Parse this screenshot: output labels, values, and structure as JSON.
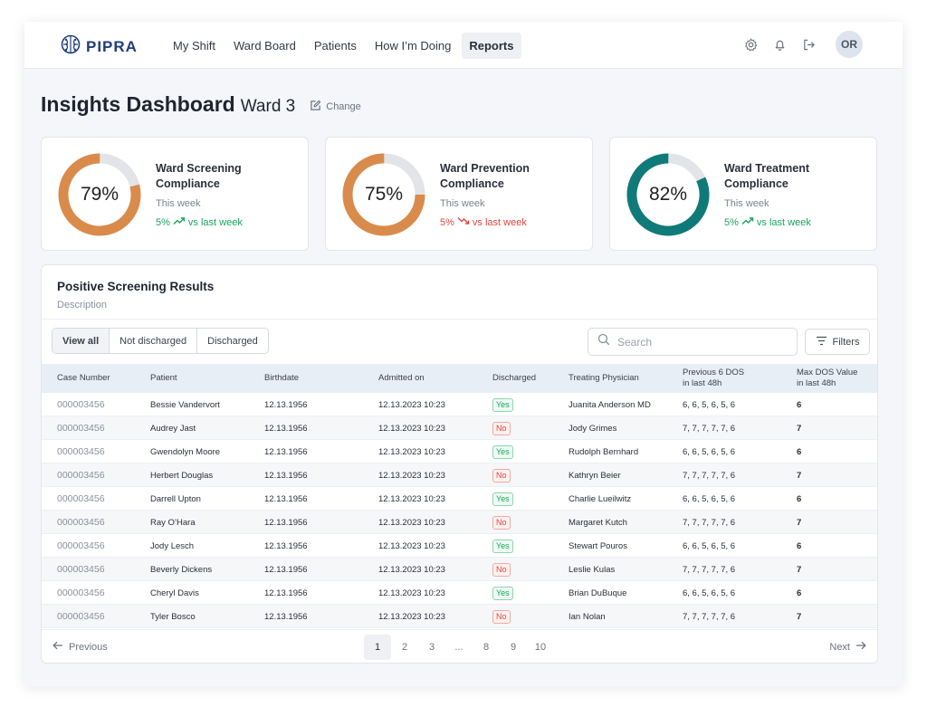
{
  "app": {
    "brand": "PIPRA"
  },
  "nav": {
    "links": [
      "My Shift",
      "Ward Board",
      "Patients",
      "How I’m Doing",
      "Reports"
    ],
    "active": "Reports",
    "icons": [
      "gear-icon",
      "bell-icon",
      "logout-icon"
    ],
    "avatar_initials": "OR"
  },
  "header": {
    "title": "Insights Dashboard",
    "ward": "Ward 3",
    "change_label": "Change"
  },
  "kpis": [
    {
      "title": "Ward Screening Compliance",
      "value": 79,
      "value_label": "79%",
      "period": "This week",
      "trend_value": "5%",
      "trend_dir": "up",
      "trend_label": "vs last week",
      "color": "#d98b4b"
    },
    {
      "title": "Ward Prevention Compliance",
      "value": 75,
      "value_label": "75%",
      "period": "This week",
      "trend_value": "5%",
      "trend_dir": "down",
      "trend_label": "vs last week",
      "color": "#d98b4b"
    },
    {
      "title": "Ward Treatment Compliance",
      "value": 82,
      "value_label": "82%",
      "period": "This week",
      "trend_value": "5%",
      "trend_dir": "up",
      "trend_label": "vs last week",
      "color": "#0f7a78"
    }
  ],
  "colors": {
    "donut_track": "#e2e4e8",
    "trend_up": "#18a55a",
    "trend_down": "#e0463c"
  },
  "table": {
    "title": "Positive Screening Results",
    "description": "Description",
    "filters": [
      "View all",
      "Not discharged",
      "Discharged"
    ],
    "active_filter": "View all",
    "search_placeholder": "Search",
    "filters_button": "Filters",
    "columns": [
      "Case Number",
      "Patient",
      "Birthdate",
      "Admitted on",
      "Discharged",
      "Treating Physician",
      "Previous 6 DOS\nin last 48h",
      "Max DOS Value\nin last 48h"
    ],
    "rows": [
      [
        "000003456",
        "Bessie Vandervort",
        "12.13.1956",
        "12.13.2023 10:23",
        "Yes",
        "Juanita Anderson MD",
        "6, 6, 5, 6, 5, 6",
        "6"
      ],
      [
        "000003456",
        "Audrey Jast",
        "12.13.1956",
        "12.13.2023 10:23",
        "No",
        "Jody Grimes",
        "7, 7, 7, 7, 7, 6",
        "7"
      ],
      [
        "000003456",
        "Gwendolyn Moore",
        "12.13.1956",
        "12.13.2023 10:23",
        "Yes",
        "Rudolph Bernhard",
        "6, 6, 5, 6, 5, 6",
        "6"
      ],
      [
        "000003456",
        "Herbert Douglas",
        "12.13.1956",
        "12.13.2023 10:23",
        "No",
        "Kathryn Beier",
        "7, 7, 7, 7, 7, 6",
        "7"
      ],
      [
        "000003456",
        "Darrell Upton",
        "12.13.1956",
        "12.13.2023 10:23",
        "Yes",
        "Charlie Lueilwitz",
        "6, 6, 5, 6, 5, 6",
        "6"
      ],
      [
        "000003456",
        "Ray O’Hara",
        "12.13.1956",
        "12.13.2023 10:23",
        "No",
        "Margaret Kutch",
        "7, 7, 7, 7, 7, 6",
        "7"
      ],
      [
        "000003456",
        "Jody Lesch",
        "12.13.1956",
        "12.13.2023 10:23",
        "Yes",
        "Stewart Pouros",
        "6, 6, 5, 6, 5, 6",
        "6"
      ],
      [
        "000003456",
        "Beverly Dickens",
        "12.13.1956",
        "12.13.2023 10:23",
        "No",
        "Leslie Kulas",
        "7, 7, 7, 7, 7, 6",
        "7"
      ],
      [
        "000003456",
        "Cheryl Davis",
        "12.13.1956",
        "12.13.2023 10:23",
        "Yes",
        "Brian DuBuque",
        "6, 6, 5, 6, 5, 6",
        "6"
      ],
      [
        "000003456",
        "Tyler Bosco",
        "12.13.1956",
        "12.13.2023 10:23",
        "No",
        "Ian Nolan",
        "7, 7, 7, 7, 7, 6",
        "7"
      ]
    ]
  },
  "pagination": {
    "previous": "Previous",
    "next": "Next",
    "pages": [
      "1",
      "2",
      "3",
      "...",
      "8",
      "9",
      "10"
    ],
    "current": "1"
  }
}
